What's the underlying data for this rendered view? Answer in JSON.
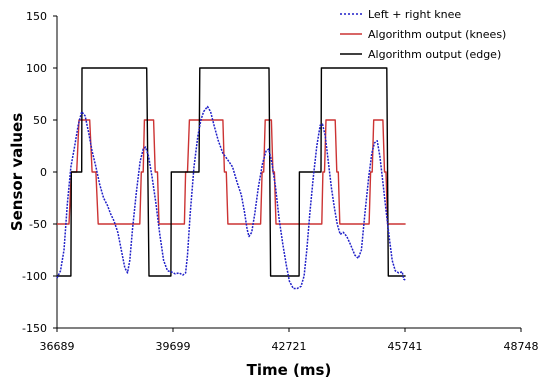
{
  "chart_data": {
    "type": "line",
    "xlabel": "Time (ms)",
    "ylabel": "Sensor values",
    "xlim": [
      36689,
      48748
    ],
    "ylim": [
      -150,
      150
    ],
    "x_tick_labels": [
      "36689",
      "39699",
      "42721",
      "45741",
      "48748"
    ],
    "y_tick_labels": [
      "150",
      "100",
      "50",
      "0",
      "-50",
      "-100",
      "-150"
    ],
    "grid": false,
    "legend_position": "top-right",
    "series": [
      {
        "name": "Left + right knee",
        "color": "#1f1fc8",
        "style": "dotted-solid",
        "points": [
          [
            36689,
            -102
          ],
          [
            36780,
            -95
          ],
          [
            36870,
            -75
          ],
          [
            36960,
            -30
          ],
          [
            37050,
            5
          ],
          [
            37150,
            25
          ],
          [
            37240,
            45
          ],
          [
            37330,
            58
          ],
          [
            37420,
            54
          ],
          [
            37510,
            38
          ],
          [
            37600,
            20
          ],
          [
            37700,
            5
          ],
          [
            37800,
            -12
          ],
          [
            37900,
            -25
          ],
          [
            38000,
            -32
          ],
          [
            38080,
            -40
          ],
          [
            38170,
            -47
          ],
          [
            38270,
            -58
          ],
          [
            38360,
            -75
          ],
          [
            38450,
            -92
          ],
          [
            38520,
            -97
          ],
          [
            38580,
            -85
          ],
          [
            38650,
            -55
          ],
          [
            38750,
            -20
          ],
          [
            38850,
            10
          ],
          [
            38930,
            22
          ],
          [
            38990,
            24
          ],
          [
            39070,
            15
          ],
          [
            39160,
            -5
          ],
          [
            39260,
            -30
          ],
          [
            39360,
            -60
          ],
          [
            39460,
            -85
          ],
          [
            39560,
            -95
          ],
          [
            39660,
            -96
          ],
          [
            39760,
            -98
          ],
          [
            39860,
            -97
          ],
          [
            39960,
            -99
          ],
          [
            40030,
            -97
          ],
          [
            40080,
            -80
          ],
          [
            40150,
            -40
          ],
          [
            40250,
            5
          ],
          [
            40350,
            35
          ],
          [
            40430,
            50
          ],
          [
            40500,
            58
          ],
          [
            40600,
            63
          ],
          [
            40680,
            58
          ],
          [
            40770,
            45
          ],
          [
            40880,
            30
          ],
          [
            41000,
            18
          ],
          [
            41120,
            12
          ],
          [
            41250,
            5
          ],
          [
            41370,
            -10
          ],
          [
            41480,
            -22
          ],
          [
            41560,
            -38
          ],
          [
            41630,
            -55
          ],
          [
            41680,
            -62
          ],
          [
            41750,
            -58
          ],
          [
            41830,
            -40
          ],
          [
            41920,
            -15
          ],
          [
            42030,
            8
          ],
          [
            42120,
            20
          ],
          [
            42190,
            22
          ],
          [
            42270,
            10
          ],
          [
            42370,
            -15
          ],
          [
            42460,
            -45
          ],
          [
            42560,
            -70
          ],
          [
            42650,
            -90
          ],
          [
            42730,
            -105
          ],
          [
            42830,
            -112
          ],
          [
            42930,
            -112
          ],
          [
            43030,
            -110
          ],
          [
            43110,
            -100
          ],
          [
            43180,
            -75
          ],
          [
            43260,
            -40
          ],
          [
            43350,
            -5
          ],
          [
            43440,
            25
          ],
          [
            43530,
            45
          ],
          [
            43590,
            46
          ],
          [
            43660,
            35
          ],
          [
            43740,
            10
          ],
          [
            43820,
            -15
          ],
          [
            43900,
            -35
          ],
          [
            43970,
            -50
          ],
          [
            44050,
            -60
          ],
          [
            44130,
            -58
          ],
          [
            44220,
            -62
          ],
          [
            44320,
            -70
          ],
          [
            44430,
            -80
          ],
          [
            44520,
            -83
          ],
          [
            44600,
            -75
          ],
          [
            44690,
            -40
          ],
          [
            44790,
            -5
          ],
          [
            44870,
            18
          ],
          [
            44940,
            28
          ],
          [
            45010,
            30
          ],
          [
            45080,
            15
          ],
          [
            45160,
            -10
          ],
          [
            45250,
            -40
          ],
          [
            45330,
            -65
          ],
          [
            45400,
            -85
          ],
          [
            45480,
            -95
          ],
          [
            45570,
            -97
          ],
          [
            45660,
            -96
          ],
          [
            45700,
            -103
          ],
          [
            45748,
            -104
          ]
        ]
      },
      {
        "name": "Algorithm output (knees)",
        "color": "#cc3333",
        "style": "solid",
        "points": [
          [
            36689,
            -50
          ],
          [
            37000,
            -50
          ],
          [
            37060,
            0
          ],
          [
            37200,
            0
          ],
          [
            37260,
            50
          ],
          [
            37540,
            50
          ],
          [
            37600,
            0
          ],
          [
            37700,
            0
          ],
          [
            37760,
            -50
          ],
          [
            38840,
            -50
          ],
          [
            38880,
            0
          ],
          [
            38930,
            0
          ],
          [
            38960,
            50
          ],
          [
            39200,
            50
          ],
          [
            39240,
            0
          ],
          [
            39300,
            0
          ],
          [
            39340,
            -50
          ],
          [
            40000,
            -50
          ],
          [
            40030,
            0
          ],
          [
            40080,
            0
          ],
          [
            40130,
            50
          ],
          [
            41000,
            50
          ],
          [
            41040,
            0
          ],
          [
            41090,
            0
          ],
          [
            41130,
            -50
          ],
          [
            41980,
            -50
          ],
          [
            42020,
            0
          ],
          [
            42060,
            0
          ],
          [
            42100,
            50
          ],
          [
            42260,
            50
          ],
          [
            42300,
            0
          ],
          [
            42340,
            0
          ],
          [
            42380,
            -50
          ],
          [
            43570,
            -50
          ],
          [
            43600,
            0
          ],
          [
            43640,
            0
          ],
          [
            43680,
            50
          ],
          [
            43920,
            50
          ],
          [
            43960,
            0
          ],
          [
            44000,
            0
          ],
          [
            44040,
            -50
          ],
          [
            44800,
            -50
          ],
          [
            44840,
            0
          ],
          [
            44880,
            0
          ],
          [
            44920,
            50
          ],
          [
            45160,
            50
          ],
          [
            45200,
            0
          ],
          [
            45240,
            0
          ],
          [
            45280,
            -50
          ],
          [
            45748,
            -50
          ]
        ]
      },
      {
        "name": "Algorithm output (edge)",
        "color": "#000000",
        "style": "solid",
        "points": [
          [
            36689,
            -100
          ],
          [
            37050,
            -100
          ],
          [
            37060,
            0
          ],
          [
            37330,
            0
          ],
          [
            37340,
            100
          ],
          [
            39020,
            100
          ],
          [
            39080,
            -100
          ],
          [
            39650,
            -100
          ],
          [
            39660,
            0
          ],
          [
            40380,
            0
          ],
          [
            40400,
            100
          ],
          [
            42200,
            100
          ],
          [
            42240,
            -100
          ],
          [
            42980,
            -100
          ],
          [
            42990,
            0
          ],
          [
            43550,
            0
          ],
          [
            43560,
            100
          ],
          [
            45260,
            100
          ],
          [
            45300,
            -100
          ],
          [
            45748,
            -100
          ]
        ]
      }
    ]
  }
}
